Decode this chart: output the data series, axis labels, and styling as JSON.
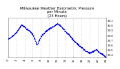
{
  "title": "Milwaukee Weather Barometric Pressure\nper Minute\n(24 Hours)",
  "title_fontsize": 3.8,
  "bg_color": "#ffffff",
  "plot_bg_color": "#ffffff",
  "dot_color": "#0000dd",
  "dot_size": 0.8,
  "grid_color": "#bbbbbb",
  "grid_style": "--",
  "tick_fontsize": 2.8,
  "ylim": [
    29.35,
    30.15
  ],
  "yticks": [
    29.4,
    29.5,
    29.6,
    29.7,
    29.8,
    29.9,
    30.0,
    30.1
  ],
  "ytick_labels": [
    "29.4",
    "29.5",
    "29.6",
    "29.7",
    "29.8",
    "29.9",
    "30.0",
    "30.1"
  ],
  "num_points": 1440,
  "xlim": [
    0,
    1439
  ],
  "control_hours": [
    0,
    0.5,
    1.5,
    2.5,
    3.2,
    4.5,
    5.5,
    6.2,
    7.0,
    8.0,
    9.0,
    10.0,
    11.0,
    12.0,
    13.0,
    14.0,
    15.0,
    16.0,
    17.0,
    18.0,
    19.0,
    20.0,
    21.0,
    21.5,
    22.0,
    22.5,
    23.0,
    23.5,
    23.9
  ],
  "control_pressure": [
    29.72,
    29.76,
    29.82,
    29.92,
    30.02,
    29.93,
    29.87,
    29.78,
    29.6,
    29.78,
    29.87,
    29.93,
    29.98,
    30.04,
    29.98,
    29.88,
    29.8,
    29.7,
    29.62,
    29.55,
    29.48,
    29.44,
    29.48,
    29.52,
    29.48,
    29.44,
    29.42,
    29.38,
    29.36
  ],
  "xtick_hours": [
    0,
    2,
    4,
    6,
    8,
    10,
    12,
    14,
    16,
    18,
    20,
    22,
    24
  ],
  "noise_std": 0.006
}
